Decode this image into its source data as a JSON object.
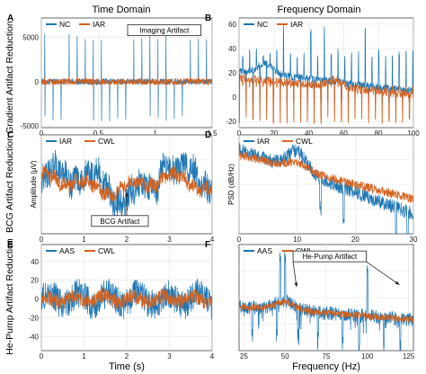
{
  "colors": {
    "blue": "#1f77b4",
    "orange": "#d4621f",
    "annot_border": "#222222"
  },
  "column_titles": [
    "Time Domain",
    "Frequency Domain"
  ],
  "row_labels": [
    "Gradient Artifact Reduction",
    "BCG Artifact Reduction",
    "He-Pump Artifact Reduction"
  ],
  "x_titles": [
    "Time (s)",
    "Frequency (Hz)"
  ],
  "chart_data": [
    {
      "id": "A",
      "panel_letter": "A",
      "type": "line",
      "grid": true,
      "legend": "top-left",
      "xlim": [
        0,
        1.5
      ],
      "ylim": [
        -5200,
        7200
      ],
      "xticks": [
        0,
        0.5,
        1,
        1.5
      ],
      "xtick_labels": [
        "0",
        "0.5",
        "1",
        "1.5"
      ],
      "yticks": [
        -5000,
        0,
        5000
      ],
      "ytick_labels": [
        "-5000",
        "0",
        "5000"
      ],
      "ylabel": "",
      "series": [
        {
          "name": "NC",
          "color": "#1f77b4",
          "shape": "spikes",
          "baseline": 0,
          "noise": 350,
          "spike_period": 0.071,
          "spike_first": 0.03,
          "spike_pos": 5500,
          "spike_neg": -4500
        },
        {
          "name": "IAR",
          "color": "#d4621f",
          "shape": "noise",
          "baseline": 0,
          "noise": 350,
          "spike_period": 0.071,
          "spike_first": 0.03,
          "spike_pos": 600,
          "spike_neg": -600
        }
      ],
      "annotations": [
        {
          "text": "Imaging Artifact",
          "box": true
        }
      ]
    },
    {
      "id": "B",
      "panel_letter": "B",
      "type": "line",
      "grid": true,
      "legend": "top-left",
      "xlim": [
        0,
        100
      ],
      "ylim": [
        -25,
        65
      ],
      "xticks": [
        0,
        20,
        40,
        60,
        80,
        100
      ],
      "xtick_labels": [
        "0",
        "20",
        "40",
        "60",
        "80",
        "100"
      ],
      "yticks": [
        -20,
        0,
        20,
        40,
        60
      ],
      "ytick_labels": [
        "-20",
        "0",
        "20",
        "40",
        "60"
      ],
      "ylabel": "",
      "series": [
        {
          "name": "NC",
          "color": "#1f77b4",
          "shape": "spectrum",
          "base_start": 22,
          "base_end": 5,
          "bump_at": 15,
          "bump_height": 8,
          "noise": 6,
          "spike_period": 3.9,
          "spike_first": 2,
          "spike_top": 40,
          "spike_bottom": -5,
          "big_spikes": [
            26,
            40,
            50,
            74
          ]
        },
        {
          "name": "IAR",
          "color": "#d4621f",
          "shape": "spectrum",
          "base_start": 16,
          "base_end": 2,
          "bump_at": 55,
          "bump_height": 6,
          "noise": 7,
          "spike_period": 3.9,
          "spike_first": 2,
          "spike_top": 10,
          "spike_bottom": -22,
          "big_spikes": []
        }
      ],
      "annotations": []
    },
    {
      "id": "C",
      "panel_letter": "C",
      "type": "line",
      "grid": true,
      "legend": "top-left",
      "xlim": [
        0,
        4
      ],
      "ylim": [
        -12,
        12
      ],
      "xticks": [
        0,
        1,
        2,
        3,
        4
      ],
      "xtick_labels": [
        "0",
        "1",
        "2",
        "3",
        "4"
      ],
      "yticks": [],
      "ytick_labels": [],
      "ylabel": "Amplitude (μV)",
      "series": [
        {
          "name": "IAR",
          "color": "#1f77b4",
          "shape": "eeg",
          "amp": 7,
          "noise": 2.5,
          "wiggle": 3
        },
        {
          "name": "CWL",
          "color": "#d4621f",
          "shape": "eeg",
          "amp": 3.5,
          "noise": 1.2,
          "wiggle": 2
        }
      ],
      "annotations": [
        {
          "text": "BCG Artifact",
          "box": true
        }
      ]
    },
    {
      "id": "D",
      "panel_letter": "D",
      "type": "line",
      "grid": true,
      "legend": "top-left",
      "xlim": [
        0,
        30
      ],
      "ylim": [
        -10,
        10
      ],
      "xticks": [
        0,
        10,
        20,
        30
      ],
      "xtick_labels": [
        "0",
        "10",
        "20",
        "30"
      ],
      "yticks": [],
      "ytick_labels": [],
      "ylabel": "PSD (dB/Hz)",
      "series": [
        {
          "name": "IAR",
          "color": "#1f77b4",
          "shape": "psd",
          "start": 7,
          "end": -6,
          "bump_at": 10,
          "bump_height": 4,
          "noise": 1.4,
          "dips": [
            14,
            18,
            27,
            29
          ]
        },
        {
          "name": "CWL",
          "color": "#d4621f",
          "shape": "psd",
          "start": 6,
          "end": -3,
          "bump_at": 10,
          "bump_height": 1.5,
          "noise": 0.9,
          "dips": []
        }
      ],
      "annotations": []
    },
    {
      "id": "E",
      "panel_letter": "E",
      "type": "line",
      "grid": true,
      "legend": "top-left",
      "xlim": [
        0,
        4
      ],
      "ylim": [
        -55,
        58
      ],
      "xticks": [
        0,
        1,
        2,
        3,
        4
      ],
      "xtick_labels": [
        "0",
        "1",
        "2",
        "3",
        "4"
      ],
      "yticks": [
        -40,
        -20,
        0,
        20,
        40
      ],
      "ytick_labels": [
        "-40",
        "-20",
        "0",
        "20",
        "40"
      ],
      "ylabel": "",
      "series": [
        {
          "name": "AAS",
          "color": "#1f77b4",
          "shape": "noise",
          "noise": 16
        },
        {
          "name": "CWL",
          "color": "#d4621f",
          "shape": "noise",
          "noise": 8
        }
      ],
      "annotations": []
    },
    {
      "id": "F",
      "panel_letter": "F",
      "type": "line",
      "grid": true,
      "legend": "top-left",
      "xlim": [
        22,
        128
      ],
      "ylim": [
        -12,
        12
      ],
      "xticks": [
        25,
        50,
        75,
        100,
        125
      ],
      "xtick_labels": [
        "25",
        "50",
        "75",
        "100",
        "125"
      ],
      "yticks": [],
      "ytick_labels": [],
      "ylabel": "",
      "series": [
        {
          "name": "AAS",
          "color": "#1f77b4",
          "shape": "psd",
          "start": -2,
          "end": -5,
          "bump_at": 50,
          "bump_height": 2,
          "noise": 1.6,
          "dips": [
            30,
            45,
            58,
            70,
            85,
            95,
            110,
            120
          ],
          "peaks": [
            47,
            50,
            100
          ]
        },
        {
          "name": "CWL",
          "color": "#d4621f",
          "shape": "psd",
          "start": -2,
          "end": -5,
          "bump_at": 50,
          "bump_height": 1.8,
          "noise": 0.8,
          "dips": [],
          "peaks": []
        }
      ],
      "annotations": [
        {
          "text": "He-Pump Artifact",
          "box": true
        }
      ]
    }
  ]
}
